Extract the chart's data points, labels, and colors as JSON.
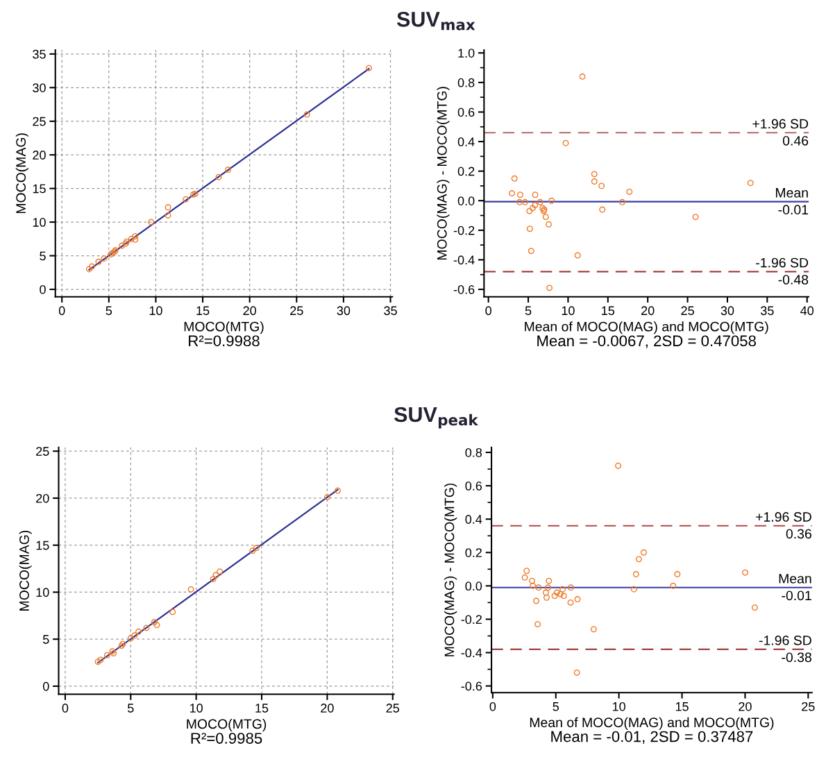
{
  "chart_data": [
    {
      "type": "scatter",
      "title": "SUV$_{max}$",
      "xlabel": "MOCO(MTG)",
      "ylabel": "MOCO(MAG)",
      "annotations": [
        "R²=0.9988"
      ],
      "xlim": [
        -0.7,
        35.2
      ],
      "ylim": [
        -1.1,
        35.6
      ],
      "xticks": [
        0,
        5,
        10,
        15,
        20,
        25,
        30,
        35
      ],
      "yticks": [
        0,
        5,
        10,
        15,
        20,
        25,
        30,
        35
      ],
      "grid": true,
      "legend": false,
      "series": [
        {
          "type": "scatter",
          "marker": "circle",
          "color": "#f07a28",
          "x": [
            2.9,
            3.2,
            3.9,
            4.5,
            5.2,
            5.4,
            5.6,
            5.7,
            6.4,
            6.8,
            6.9,
            7.4,
            7.8,
            7.8,
            9.5,
            11.3,
            11.3,
            13.2,
            14.0,
            14.2,
            16.7,
            17.7,
            26.1,
            32.7
          ],
          "values": [
            3.0,
            3.4,
            4.1,
            4.6,
            5.2,
            5.4,
            5.6,
            5.8,
            6.5,
            6.8,
            7.1,
            7.5,
            7.9,
            7.4,
            10.0,
            12.2,
            11.0,
            13.4,
            14.1,
            14.2,
            16.7,
            17.8,
            26.0,
            32.9
          ]
        },
        {
          "type": "line",
          "marker": "none",
          "line_style": "solid",
          "color": "#2e3192",
          "x": [
            2.9,
            32.7
          ],
          "values": [
            2.9,
            32.8
          ]
        }
      ]
    },
    {
      "type": "scatter",
      "xlabel": "Mean of MOCO(MAG) and MOCO(MTG)",
      "ylabel": "MOCO(MAG) - MOCO(MTG)",
      "annotations": [
        "Mean = -0.0067, 2SD = 0.47058",
        {
          "text": "0.46",
          "y": 0.46
        },
        {
          "text": "-0.01",
          "y": -0.0067
        },
        {
          "text": "-0.48",
          "y": -0.48
        }
      ],
      "xlim": [
        -0.55,
        40.2
      ],
      "ylim": [
        -0.65,
        1.02
      ],
      "xticks": [
        0,
        5,
        10,
        15,
        20,
        25,
        30,
        35,
        40
      ],
      "yticks": [
        {
          "value": -0.6,
          "label": "-0.6"
        },
        {
          "value": -0.5,
          "label": null
        },
        {
          "value": -0.4,
          "label": "-0.4"
        },
        {
          "value": -0.3,
          "label": null
        },
        {
          "value": -0.2,
          "label": "-0.2"
        },
        {
          "value": -0.1,
          "label": null
        },
        {
          "value": 0.0,
          "label": "0.0"
        },
        {
          "value": 0.1,
          "label": null
        },
        {
          "value": 0.2,
          "label": "0.2"
        },
        {
          "value": 0.3,
          "label": null
        },
        {
          "value": 0.4,
          "label": "0.4"
        },
        {
          "value": 0.5,
          "label": null
        },
        {
          "value": 0.6,
          "label": "0.6"
        },
        {
          "value": 0.7,
          "label": null
        },
        {
          "value": 0.8,
          "label": "0.8"
        },
        {
          "value": 0.9,
          "label": null
        },
        {
          "value": 1.0,
          "label": "1.0"
        }
      ],
      "grid": false,
      "legend": false,
      "ref_lines": [
        {
          "axis": "y",
          "value": 0.46,
          "label": "+1.96 SD",
          "color": "#b86a6a",
          "line_style": "dashed"
        },
        {
          "axis": "y",
          "value": -0.0067,
          "label": "Mean",
          "color": "#3a3aa0",
          "line_style": "solid"
        },
        {
          "axis": "y",
          "value": -0.48,
          "label": "-1.96 SD",
          "color": "#9a2a2a",
          "line_style": "dashed"
        }
      ],
      "series": [
        {
          "type": "scatter",
          "marker": "circle",
          "color": "#f07a28",
          "x": [
            2.95,
            3.27,
            3.99,
            3.9,
            4.6,
            5.87,
            5.15,
            5.55,
            5.84,
            6.5,
            6.8,
            7.0,
            6.95,
            7.2,
            5.2,
            7.57,
            5.37,
            7.92,
            7.66,
            9.7,
            11.2,
            11.8,
            13.3,
            13.3,
            14.2,
            14.3,
            16.8,
            17.7,
            26.0,
            32.9
          ],
          "values": [
            0.05,
            0.15,
            0.04,
            -0.01,
            -0.01,
            0.04,
            -0.07,
            -0.05,
            -0.03,
            -0.01,
            -0.05,
            -0.06,
            -0.07,
            -0.11,
            -0.19,
            -0.16,
            -0.34,
            0.0,
            -0.59,
            0.39,
            -0.37,
            0.84,
            0.18,
            0.13,
            0.1,
            -0.06,
            -0.01,
            0.06,
            -0.11,
            0.12
          ]
        }
      ]
    },
    {
      "type": "scatter",
      "title": "SUV$_{peak}$",
      "xlabel": "MOCO(MTG)",
      "ylabel": "MOCO(MAG)",
      "annotations": [
        "R²=0.9985"
      ],
      "xlim": [
        -0.5,
        25.1
      ],
      "ylim": [
        -0.85,
        25.4
      ],
      "xticks": [
        0,
        5,
        10,
        15,
        20,
        25
      ],
      "yticks": [
        0,
        5,
        10,
        15,
        20,
        25
      ],
      "grid": true,
      "legend": false,
      "series": [
        {
          "type": "scatter",
          "marker": "circle",
          "color": "#f07a28",
          "x": [
            2.5,
            2.7,
            3.2,
            3.6,
            3.7,
            4.3,
            4.4,
            5.0,
            5.3,
            5.6,
            6.2,
            6.8,
            7.0,
            8.2,
            9.6,
            11.3,
            11.5,
            11.8,
            14.3,
            14.6,
            20.0,
            20.8
          ],
          "values": [
            2.6,
            2.8,
            3.3,
            3.7,
            3.5,
            4.3,
            4.5,
            5.1,
            5.4,
            5.8,
            6.2,
            6.8,
            6.5,
            7.9,
            10.3,
            11.4,
            11.8,
            12.2,
            14.4,
            14.7,
            20.1,
            20.8
          ]
        },
        {
          "type": "line",
          "marker": "none",
          "line_style": "solid",
          "color": "#2e3192",
          "x": [
            2.5,
            20.8
          ],
          "values": [
            2.5,
            20.9
          ]
        }
      ]
    },
    {
      "type": "scatter",
      "xlabel": "Mean of MOCO(MAG) and MOCO(MTG)",
      "ylabel": "MOCO(MAG) - MOCO(MTG)",
      "annotations": [
        "Mean = -0.01, 2SD = 0.37487",
        {
          "text": "0.36",
          "y": 0.36
        },
        {
          "text": "-0.01",
          "y": -0.01
        },
        {
          "text": "-0.38",
          "y": -0.38
        }
      ],
      "xlim": [
        -0.1,
        25.3
      ],
      "ylim": [
        -0.64,
        0.83
      ],
      "xticks": [
        0,
        5,
        10,
        15,
        20,
        25
      ],
      "yticks": [
        {
          "value": -0.6,
          "label": "-0.6"
        },
        {
          "value": -0.5,
          "label": null
        },
        {
          "value": -0.4,
          "label": "-0.4"
        },
        {
          "value": -0.3,
          "label": null
        },
        {
          "value": -0.2,
          "label": "-0.2"
        },
        {
          "value": -0.1,
          "label": null
        },
        {
          "value": 0.0,
          "label": "0.0"
        },
        {
          "value": 0.1,
          "label": null
        },
        {
          "value": 0.2,
          "label": "0.2"
        },
        {
          "value": 0.3,
          "label": null
        },
        {
          "value": 0.4,
          "label": "0.4"
        },
        {
          "value": 0.5,
          "label": null
        },
        {
          "value": 0.6,
          "label": "0.6"
        },
        {
          "value": 0.7,
          "label": null
        },
        {
          "value": 0.8,
          "label": "0.8"
        }
      ],
      "grid": false,
      "legend": false,
      "ref_lines": [
        {
          "axis": "y",
          "value": 0.36,
          "label": "+1.96 SD",
          "color": "#b04848",
          "line_style": "dashed"
        },
        {
          "axis": "y",
          "value": -0.01,
          "label": "Mean",
          "color": "#3a3aa0",
          "line_style": "solid"
        },
        {
          "axis": "y",
          "value": -0.38,
          "label": "-1.96 SD",
          "color": "#9a2a2a",
          "line_style": "dashed"
        }
      ],
      "series": [
        {
          "type": "scatter",
          "marker": "circle",
          "color": "#f07a28",
          "x": [
            2.54,
            2.69,
            3.12,
            3.18,
            3.63,
            3.45,
            3.56,
            4.45,
            4.38,
            4.21,
            4.27,
            4.91,
            5.09,
            5.36,
            5.54,
            5.63,
            6.19,
            6.17,
            6.72,
            6.67,
            8.0,
            9.94,
            11.19,
            11.36,
            11.58,
            11.97,
            14.3,
            14.63,
            20.01,
            20.77
          ],
          "values": [
            0.05,
            0.09,
            0.03,
            0.0,
            -0.01,
            -0.09,
            -0.23,
            0.03,
            -0.01,
            -0.04,
            -0.07,
            -0.06,
            -0.04,
            -0.05,
            -0.02,
            -0.06,
            -0.01,
            -0.1,
            -0.08,
            -0.52,
            -0.26,
            0.72,
            -0.02,
            0.07,
            0.16,
            0.2,
            0.0,
            0.07,
            0.08,
            -0.13
          ]
        }
      ]
    }
  ]
}
